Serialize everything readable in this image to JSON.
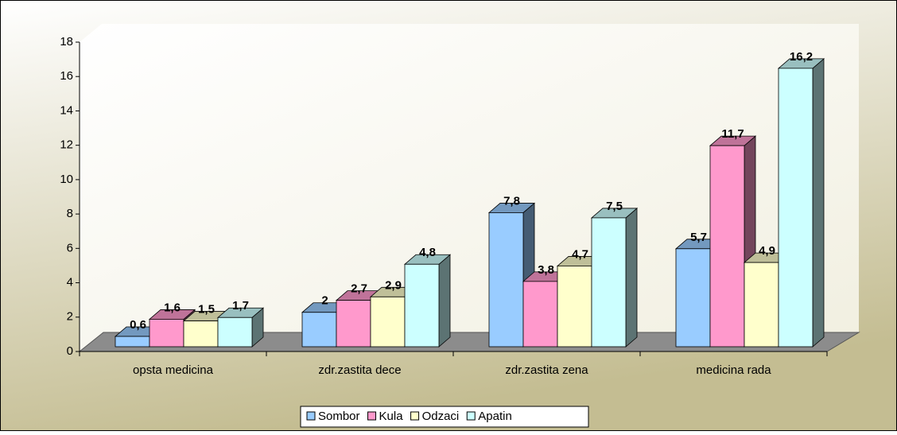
{
  "chart_data": {
    "type": "bar3d",
    "categories": [
      "opsta medicina",
      "zdr.zastita dece",
      "zdr.zastita zena",
      "medicina rada"
    ],
    "series": [
      {
        "name": "Sombor",
        "color": "#99ccff",
        "values": [
          0.6,
          2,
          7.8,
          5.7
        ],
        "value_labels": [
          "0,6",
          "2",
          "7,8",
          "5,7"
        ]
      },
      {
        "name": "Kula",
        "color": "#ff99cc",
        "values": [
          1.6,
          2.7,
          3.8,
          11.7
        ],
        "value_labels": [
          "1,6",
          "2,7",
          "3,8",
          "11,7"
        ]
      },
      {
        "name": "Odzaci",
        "color": "#ffffcc",
        "values": [
          1.5,
          2.9,
          4.7,
          4.9
        ],
        "value_labels": [
          "1,5",
          "2,9",
          "4,7",
          "4,9"
        ]
      },
      {
        "name": "Apatin",
        "color": "#ccffff",
        "values": [
          1.7,
          4.8,
          7.5,
          16.2
        ],
        "value_labels": [
          "1,7",
          "4,8",
          "7,5",
          "16,2"
        ]
      }
    ],
    "ylim": [
      0,
      18
    ],
    "yticks": [
      0,
      2,
      4,
      6,
      8,
      10,
      12,
      14,
      16,
      18
    ],
    "legend": "bottom"
  }
}
